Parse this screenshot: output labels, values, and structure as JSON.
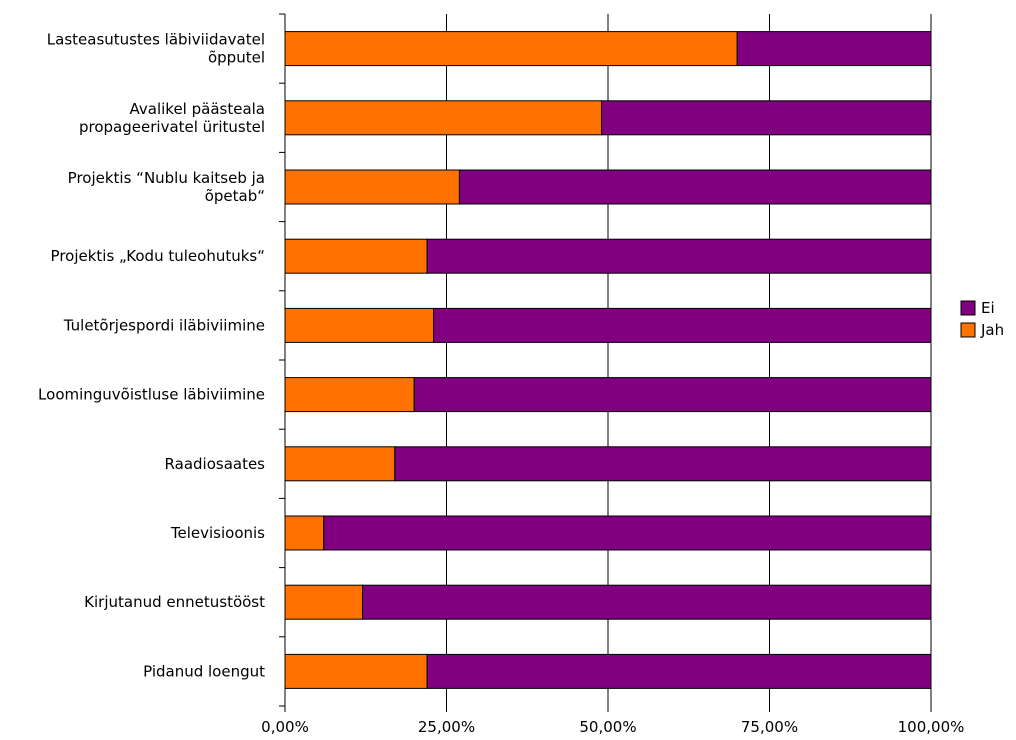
{
  "chart_data": {
    "type": "bar",
    "orientation": "horizontal",
    "stacked": true,
    "percent_stacked": true,
    "categories": [
      [
        "Lasteasutustes läbiviidavatel",
        "õpputel"
      ],
      [
        "Avalikel päästeala",
        "propageerivatel üritustel"
      ],
      [
        "Projektis “Nublu kaitseb ja",
        "õpetab“"
      ],
      [
        "Projektis „Kodu tuleohutuks“"
      ],
      [
        "Tuletõrjespordi iläbiviimine"
      ],
      [
        "Loominguvõistluse läbiviimine"
      ],
      [
        "Raadiosaates"
      ],
      [
        "Televisioonis"
      ],
      [
        "Kirjutanud ennetustööst"
      ],
      [
        "Pidanud loengut"
      ]
    ],
    "series": [
      {
        "name": "Jah",
        "color": "#ff7200",
        "values": [
          0.7,
          0.49,
          0.27,
          0.22,
          0.23,
          0.2,
          0.17,
          0.06,
          0.12,
          0.22
        ]
      },
      {
        "name": "Ei",
        "color": "#800080",
        "values": [
          0.3,
          0.51,
          0.73,
          0.78,
          0.77,
          0.8,
          0.83,
          0.94,
          0.88,
          0.78
        ]
      }
    ],
    "xlim": [
      0,
      1
    ],
    "xticks": [
      "0,00%",
      "25,00%",
      "50,00%",
      "75,00%",
      "100,00%"
    ],
    "grid": true,
    "legend": {
      "position": "right",
      "order": [
        "Ei",
        "Jah"
      ]
    }
  }
}
